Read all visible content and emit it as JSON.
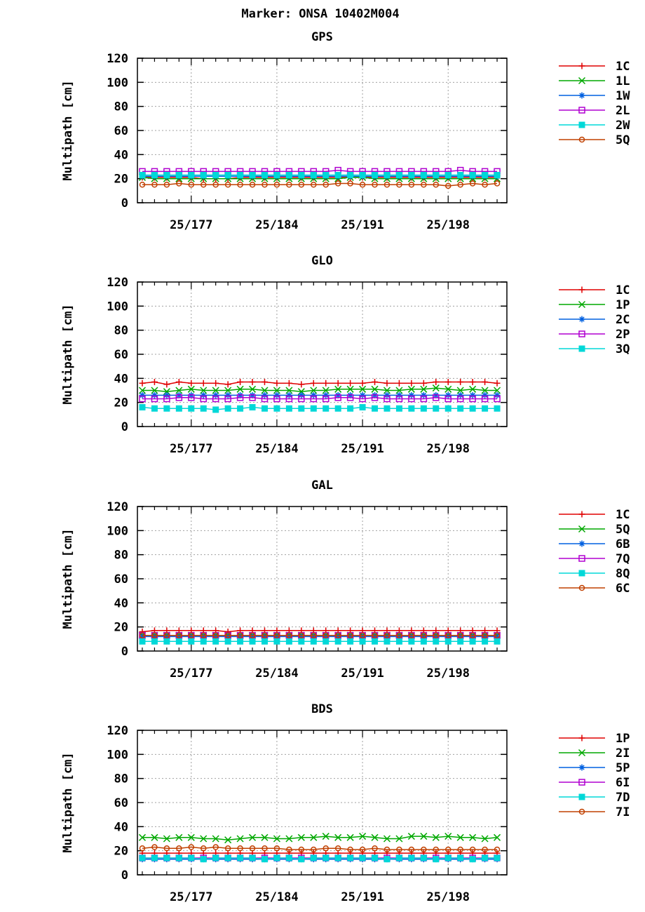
{
  "main_title": "Marker: ONSA 10402M004",
  "chart_data": [
    {
      "type": "line",
      "title": "GPS",
      "ylabel": "Multipath [cm]",
      "ylim": [
        0,
        120
      ],
      "yticks": [
        0,
        20,
        40,
        60,
        80,
        100,
        120
      ],
      "xticks": [
        "25/177",
        "25/184",
        "25/191",
        "25/198"
      ],
      "x_days": [
        173,
        174,
        175,
        176,
        177,
        178,
        179,
        180,
        181,
        182,
        183,
        184,
        185,
        186,
        187,
        188,
        189,
        190,
        191,
        192,
        193,
        194,
        195,
        196,
        197,
        198,
        199,
        200,
        201,
        202
      ],
      "grid": true,
      "legend_position": "right",
      "series": [
        {
          "name": "1C",
          "color": "#e00000",
          "marker": "plus",
          "values": [
            21,
            21,
            21,
            21,
            21,
            20,
            20,
            20,
            21,
            21,
            21,
            21,
            21,
            21,
            21,
            21,
            21,
            21,
            21,
            21,
            21,
            21,
            21,
            21,
            21,
            21,
            21,
            21,
            21,
            21
          ]
        },
        {
          "name": "1L",
          "color": "#00a800",
          "marker": "x",
          "values": [
            21,
            20,
            20,
            20,
            20,
            20,
            20,
            20,
            20,
            20,
            20,
            20,
            20,
            20,
            20,
            20,
            20,
            21,
            21,
            20,
            20,
            20,
            20,
            20,
            20,
            20,
            20,
            20,
            20,
            20
          ]
        },
        {
          "name": "1W",
          "color": "#0060e0",
          "marker": "star",
          "values": [
            22,
            22,
            22,
            22,
            22,
            22,
            22,
            22,
            22,
            22,
            22,
            22,
            22,
            22,
            22,
            22,
            22,
            22,
            22,
            22,
            22,
            22,
            22,
            22,
            22,
            22,
            22,
            22,
            22,
            22
          ]
        },
        {
          "name": "2L",
          "color": "#b000d0",
          "marker": "square",
          "values": [
            26,
            26,
            26,
            26,
            26,
            26,
            26,
            26,
            26,
            26,
            26,
            26,
            26,
            26,
            26,
            26,
            27,
            26,
            26,
            26,
            26,
            26,
            26,
            26,
            26,
            26,
            27,
            26,
            26,
            26
          ]
        },
        {
          "name": "2W",
          "color": "#00d8d8",
          "marker": "filled-square",
          "values": [
            23,
            23,
            23,
            23,
            23,
            23,
            23,
            23,
            23,
            23,
            23,
            23,
            23,
            23,
            23,
            23,
            23,
            23,
            23,
            23,
            23,
            23,
            23,
            23,
            23,
            23,
            23,
            23,
            23,
            23
          ]
        },
        {
          "name": "5Q",
          "color": "#c04000",
          "marker": "circle",
          "values": [
            15,
            15,
            15,
            16,
            15,
            15,
            15,
            15,
            15,
            15,
            15,
            15,
            15,
            15,
            15,
            15,
            16,
            16,
            15,
            15,
            15,
            15,
            15,
            15,
            15,
            14,
            15,
            16,
            15,
            16
          ]
        }
      ]
    },
    {
      "type": "line",
      "title": "GLO",
      "ylabel": "Multipath [cm]",
      "ylim": [
        0,
        120
      ],
      "yticks": [
        0,
        20,
        40,
        60,
        80,
        100,
        120
      ],
      "xticks": [
        "25/177",
        "25/184",
        "25/191",
        "25/198"
      ],
      "x_days": [
        173,
        174,
        175,
        176,
        177,
        178,
        179,
        180,
        181,
        182,
        183,
        184,
        185,
        186,
        187,
        188,
        189,
        190,
        191,
        192,
        193,
        194,
        195,
        196,
        197,
        198,
        199,
        200,
        201,
        202
      ],
      "grid": true,
      "legend_position": "right",
      "series": [
        {
          "name": "1C",
          "color": "#e00000",
          "marker": "plus",
          "values": [
            36,
            37,
            35,
            37,
            36,
            36,
            36,
            35,
            37,
            37,
            37,
            36,
            36,
            35,
            36,
            36,
            36,
            36,
            36,
            37,
            36,
            36,
            36,
            36,
            37,
            37,
            37,
            37,
            37,
            36
          ]
        },
        {
          "name": "1P",
          "color": "#00a800",
          "marker": "x",
          "values": [
            30,
            30,
            29,
            30,
            31,
            30,
            30,
            30,
            31,
            31,
            30,
            30,
            30,
            29,
            30,
            30,
            31,
            31,
            31,
            31,
            30,
            30,
            31,
            31,
            32,
            31,
            30,
            31,
            30,
            30
          ]
        },
        {
          "name": "2C",
          "color": "#0060e0",
          "marker": "star",
          "values": [
            26,
            26,
            26,
            26,
            26,
            26,
            26,
            26,
            26,
            26,
            26,
            26,
            26,
            26,
            26,
            26,
            26,
            26,
            26,
            26,
            26,
            26,
            26,
            26,
            26,
            26,
            26,
            26,
            26,
            26
          ]
        },
        {
          "name": "2P",
          "color": "#b000d0",
          "marker": "square",
          "values": [
            23,
            23,
            23,
            24,
            24,
            23,
            23,
            23,
            24,
            24,
            23,
            23,
            23,
            23,
            23,
            23,
            24,
            24,
            23,
            24,
            23,
            23,
            23,
            23,
            24,
            23,
            23,
            23,
            23,
            23
          ]
        },
        {
          "name": "3Q",
          "color": "#00d8d8",
          "marker": "filled-square",
          "values": [
            16,
            15,
            15,
            15,
            15,
            15,
            14,
            15,
            15,
            16,
            15,
            15,
            15,
            15,
            15,
            15,
            15,
            15,
            16,
            15,
            15,
            15,
            15,
            15,
            15,
            15,
            15,
            15,
            15,
            15
          ]
        }
      ]
    },
    {
      "type": "line",
      "title": "GAL",
      "ylabel": "Multipath [cm]",
      "ylim": [
        0,
        120
      ],
      "yticks": [
        0,
        20,
        40,
        60,
        80,
        100,
        120
      ],
      "xticks": [
        "25/177",
        "25/184",
        "25/191",
        "25/198"
      ],
      "x_days": [
        173,
        174,
        175,
        176,
        177,
        178,
        179,
        180,
        181,
        182,
        183,
        184,
        185,
        186,
        187,
        188,
        189,
        190,
        191,
        192,
        193,
        194,
        195,
        196,
        197,
        198,
        199,
        200,
        201,
        202
      ],
      "grid": true,
      "legend_position": "right",
      "series": [
        {
          "name": "1C",
          "color": "#e00000",
          "marker": "plus",
          "values": [
            16,
            17,
            17,
            17,
            17,
            17,
            17,
            16,
            17,
            17,
            17,
            17,
            17,
            17,
            17,
            17,
            17,
            17,
            17,
            17,
            17,
            17,
            17,
            17,
            17,
            17,
            17,
            17,
            17,
            17
          ]
        },
        {
          "name": "5Q",
          "color": "#00a800",
          "marker": "x",
          "values": [
            13,
            13,
            13,
            13,
            13,
            13,
            13,
            13,
            13,
            13,
            13,
            13,
            13,
            13,
            13,
            13,
            13,
            13,
            13,
            13,
            13,
            13,
            13,
            13,
            13,
            13,
            13,
            13,
            13,
            13
          ]
        },
        {
          "name": "6B",
          "color": "#0060e0",
          "marker": "star",
          "values": [
            12,
            12,
            12,
            12,
            12,
            12,
            12,
            12,
            12,
            12,
            12,
            12,
            12,
            12,
            12,
            12,
            12,
            12,
            12,
            12,
            12,
            12,
            12,
            12,
            12,
            12,
            12,
            12,
            12,
            12
          ]
        },
        {
          "name": "7Q",
          "color": "#b000d0",
          "marker": "square",
          "values": [
            13,
            13,
            13,
            13,
            13,
            13,
            13,
            13,
            13,
            13,
            13,
            13,
            13,
            13,
            13,
            13,
            13,
            13,
            13,
            13,
            13,
            13,
            13,
            13,
            13,
            13,
            13,
            13,
            13,
            13
          ]
        },
        {
          "name": "8Q",
          "color": "#00d8d8",
          "marker": "filled-square",
          "values": [
            8,
            8,
            8,
            8,
            8,
            8,
            8,
            8,
            8,
            8,
            8,
            8,
            8,
            8,
            8,
            8,
            8,
            8,
            8,
            8,
            8,
            8,
            8,
            8,
            8,
            8,
            8,
            8,
            8,
            8
          ]
        },
        {
          "name": "6C",
          "color": "#c04000",
          "marker": "circle",
          "values": [
            13,
            13,
            13,
            13,
            13,
            13,
            13,
            13,
            13,
            13,
            13,
            13,
            13,
            13,
            13,
            13,
            13,
            13,
            13,
            13,
            13,
            13,
            13,
            13,
            13,
            13,
            13,
            13,
            13,
            13
          ]
        }
      ]
    },
    {
      "type": "line",
      "title": "BDS",
      "ylabel": "Multipath [cm]",
      "ylim": [
        0,
        120
      ],
      "yticks": [
        0,
        20,
        40,
        60,
        80,
        100,
        120
      ],
      "xticks": [
        "25/177",
        "25/184",
        "25/191",
        "25/198"
      ],
      "x_days": [
        173,
        174,
        175,
        176,
        177,
        178,
        179,
        180,
        181,
        182,
        183,
        184,
        185,
        186,
        187,
        188,
        189,
        190,
        191,
        192,
        193,
        194,
        195,
        196,
        197,
        198,
        199,
        200,
        201,
        202
      ],
      "grid": true,
      "legend_position": "right",
      "series": [
        {
          "name": "1P",
          "color": "#e00000",
          "marker": "plus",
          "values": [
            18,
            18,
            18,
            18,
            18,
            18,
            18,
            18,
            18,
            18,
            18,
            18,
            18,
            18,
            18,
            18,
            18,
            18,
            18,
            18,
            18,
            18,
            18,
            18,
            18,
            18,
            18,
            18,
            18,
            18
          ]
        },
        {
          "name": "2I",
          "color": "#00a800",
          "marker": "x",
          "values": [
            31,
            31,
            30,
            31,
            31,
            30,
            30,
            29,
            30,
            31,
            31,
            30,
            30,
            31,
            31,
            32,
            31,
            31,
            32,
            31,
            30,
            30,
            32,
            32,
            31,
            32,
            31,
            31,
            30,
            31
          ]
        },
        {
          "name": "5P",
          "color": "#0060e0",
          "marker": "star",
          "values": [
            13,
            13,
            13,
            13,
            13,
            13,
            13,
            13,
            13,
            13,
            13,
            13,
            13,
            13,
            13,
            13,
            13,
            13,
            13,
            13,
            13,
            13,
            13,
            13,
            13,
            13,
            13,
            13,
            13,
            13
          ]
        },
        {
          "name": "6I",
          "color": "#b000d0",
          "marker": "square",
          "values": [
            14,
            14,
            14,
            14,
            14,
            14,
            14,
            14,
            14,
            14,
            14,
            14,
            14,
            14,
            14,
            14,
            14,
            14,
            14,
            14,
            14,
            14,
            14,
            14,
            14,
            14,
            14,
            14,
            14,
            14
          ]
        },
        {
          "name": "7D",
          "color": "#00d8d8",
          "marker": "filled-square",
          "values": [
            14,
            14,
            14,
            14,
            14,
            13,
            14,
            14,
            14,
            14,
            13,
            14,
            14,
            13,
            14,
            14,
            14,
            14,
            14,
            14,
            13,
            14,
            14,
            14,
            13,
            14,
            14,
            13,
            14,
            14
          ]
        },
        {
          "name": "7I",
          "color": "#c04000",
          "marker": "circle",
          "values": [
            22,
            23,
            22,
            22,
            23,
            22,
            23,
            22,
            22,
            22,
            22,
            22,
            21,
            21,
            21,
            22,
            22,
            21,
            21,
            22,
            21,
            21,
            21,
            21,
            21,
            21,
            21,
            21,
            21,
            21
          ]
        }
      ]
    }
  ]
}
